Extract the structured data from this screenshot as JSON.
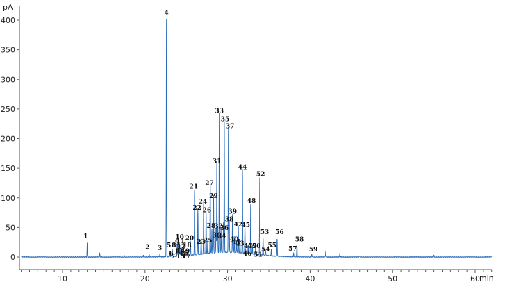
{
  "chart_data": {
    "type": "line",
    "x_unit": "min",
    "y_unit": "pA",
    "xlim": [
      5,
      62
    ],
    "ylim": [
      -20,
      410
    ],
    "x_ticks": [
      10,
      20,
      30,
      40,
      50,
      60
    ],
    "y_ticks": [
      0,
      50,
      100,
      150,
      200,
      250,
      300,
      350,
      400
    ],
    "grid": false,
    "legend": "none",
    "line_color": "#2b6cb8",
    "peaks": [
      {
        "label": "1",
        "x": 13.0,
        "y": 24,
        "lx": 12.8,
        "ly": 28
      },
      {
        "label": "2",
        "x": 20.5,
        "y": 5,
        "lx": 20.3,
        "ly": 10
      },
      {
        "label": "3",
        "x": 21.8,
        "y": 5,
        "lx": 21.8,
        "ly": 8
      },
      {
        "label": "4",
        "x": 22.6,
        "y": 400,
        "lx": 22.6,
        "ly": 405
      },
      {
        "label": "5",
        "x": 23.0,
        "y": 10,
        "lx": 22.9,
        "ly": 13
      },
      {
        "label": "6",
        "x": 23.2,
        "y": 2,
        "lx": 23.2,
        "ly": -1
      },
      {
        "label": "7",
        "x": 23.3,
        "y": 1,
        "lx": 23.4,
        "ly": -6
      },
      {
        "label": "8",
        "x": 23.3,
        "y": 12,
        "lx": 23.5,
        "ly": 13
      },
      {
        "label": "9",
        "x": 23.9,
        "y": 20,
        "lx": 23.9,
        "ly": 18
      },
      {
        "label": "10",
        "x": 24.0,
        "y": 28,
        "lx": 24.2,
        "ly": 27
      },
      {
        "label": "11",
        "x": 24.2,
        "y": 20,
        "lx": 24.3,
        "ly": 20
      },
      {
        "label": "12",
        "x": 24.4,
        "y": 12,
        "lx": 24.4,
        "ly": 11
      },
      {
        "label": "13",
        "x": 24.1,
        "y": 8,
        "lx": 24.1,
        "ly": 3
      },
      {
        "label": "14",
        "x": 24.3,
        "y": 6,
        "lx": 24.3,
        "ly": 3
      },
      {
        "label": "15",
        "x": 24.5,
        "y": 2,
        "lx": 24.3,
        "ly": -6
      },
      {
        "label": "16",
        "x": 24.7,
        "y": 3,
        "lx": 24.7,
        "ly": 0
      },
      {
        "label": "17",
        "x": 24.9,
        "y": 2,
        "lx": 25.0,
        "ly": -6
      },
      {
        "label": "18",
        "x": 25.2,
        "y": 12,
        "lx": 25.1,
        "ly": 13
      },
      {
        "label": "19",
        "x": 24.9,
        "y": 6,
        "lx": 24.9,
        "ly": 3
      },
      {
        "label": "20",
        "x": 25.5,
        "y": 25,
        "lx": 25.4,
        "ly": 25
      },
      {
        "label": "21",
        "x": 26.0,
        "y": 110,
        "lx": 25.9,
        "ly": 112
      },
      {
        "label": "22",
        "x": 26.4,
        "y": 75,
        "lx": 26.3,
        "ly": 76
      },
      {
        "label": "23",
        "x": 26.8,
        "y": 28,
        "lx": 26.8,
        "ly": 19
      },
      {
        "label": "24",
        "x": 27.1,
        "y": 85,
        "lx": 27.0,
        "ly": 86
      },
      {
        "label": "25",
        "x": 27.6,
        "y": 22,
        "lx": 27.6,
        "ly": 21
      },
      {
        "label": "26",
        "x": 27.4,
        "y": 70,
        "lx": 27.5,
        "ly": 72
      },
      {
        "label": "27",
        "x": 27.9,
        "y": 118,
        "lx": 27.8,
        "ly": 118
      },
      {
        "label": "28",
        "x": 28.1,
        "y": 40,
        "lx": 28.0,
        "ly": 46
      },
      {
        "label": "29",
        "x": 28.3,
        "y": 98,
        "lx": 28.3,
        "ly": 96
      },
      {
        "label": "30",
        "x": 28.6,
        "y": 42,
        "lx": 28.7,
        "ly": 30
      },
      {
        "label": "31",
        "x": 28.7,
        "y": 155,
        "lx": 28.7,
        "ly": 155
      },
      {
        "label": "32",
        "x": 28.8,
        "y": 45,
        "lx": 28.9,
        "ly": 45
      },
      {
        "label": "33",
        "x": 29.0,
        "y": 235,
        "lx": 29.0,
        "ly": 240
      },
      {
        "label": "34",
        "x": 29.2,
        "y": 40,
        "lx": 29.3,
        "ly": 29
      },
      {
        "label": "35",
        "x": 29.6,
        "y": 222,
        "lx": 29.7,
        "ly": 226
      },
      {
        "label": "36",
        "x": 29.5,
        "y": 50,
        "lx": 29.6,
        "ly": 42
      },
      {
        "label": "37",
        "x": 30.1,
        "y": 212,
        "lx": 30.3,
        "ly": 214
      },
      {
        "label": "38",
        "x": 30.2,
        "y": 55,
        "lx": 30.2,
        "ly": 57
      },
      {
        "label": "39",
        "x": 30.6,
        "y": 65,
        "lx": 30.6,
        "ly": 70
      },
      {
        "label": "40",
        "x": 30.8,
        "y": 28,
        "lx": 30.8,
        "ly": 23
      },
      {
        "label": "41",
        "x": 31.1,
        "y": 22,
        "lx": 31.1,
        "ly": 19
      },
      {
        "label": "42",
        "x": 31.3,
        "y": 45,
        "lx": 31.3,
        "ly": 48
      },
      {
        "label": "43",
        "x": 31.5,
        "y": 20,
        "lx": 31.5,
        "ly": 16
      },
      {
        "label": "44",
        "x": 31.8,
        "y": 142,
        "lx": 31.8,
        "ly": 145
      },
      {
        "label": "45",
        "x": 32.1,
        "y": 45,
        "lx": 32.2,
        "ly": 47
      },
      {
        "label": "46",
        "x": 32.2,
        "y": 5,
        "lx": 32.4,
        "ly": -1
      },
      {
        "label": "47",
        "x": 32.5,
        "y": 15,
        "lx": 32.5,
        "ly": 12
      },
      {
        "label": "48",
        "x": 32.8,
        "y": 85,
        "lx": 32.9,
        "ly": 88
      },
      {
        "label": "49",
        "x": 33.0,
        "y": 15,
        "lx": 33.0,
        "ly": 12
      },
      {
        "label": "50",
        "x": 33.4,
        "y": 15,
        "lx": 33.5,
        "ly": 12
      },
      {
        "label": "51",
        "x": 33.5,
        "y": 3,
        "lx": 33.7,
        "ly": -3
      },
      {
        "label": "52",
        "x": 33.9,
        "y": 130,
        "lx": 34.0,
        "ly": 133
      },
      {
        "label": "53",
        "x": 34.3,
        "y": 30,
        "lx": 34.5,
        "ly": 35
      },
      {
        "label": "54",
        "x": 34.6,
        "y": 8,
        "lx": 34.6,
        "ly": 6
      },
      {
        "label": "55",
        "x": 35.3,
        "y": 12,
        "lx": 35.4,
        "ly": 13
      },
      {
        "label": "56",
        "x": 36.0,
        "y": 30,
        "lx": 36.3,
        "ly": 35
      },
      {
        "label": "57",
        "x": 38.0,
        "y": 6,
        "lx": 37.9,
        "ly": 7
      },
      {
        "label": "58",
        "x": 38.4,
        "y": 20,
        "lx": 38.7,
        "ly": 23
      },
      {
        "label": "59",
        "x": 40.2,
        "y": 5,
        "lx": 40.4,
        "ly": 6
      }
    ],
    "minor_peaks": [
      {
        "x": 14.5,
        "y": 6
      },
      {
        "x": 17.5,
        "y": 2
      },
      {
        "x": 19.8,
        "y": 3
      },
      {
        "x": 41.9,
        "y": 10
      },
      {
        "x": 43.6,
        "y": 6
      },
      {
        "x": 46.0,
        "y": 2
      },
      {
        "x": 55.0,
        "y": 3
      }
    ]
  }
}
